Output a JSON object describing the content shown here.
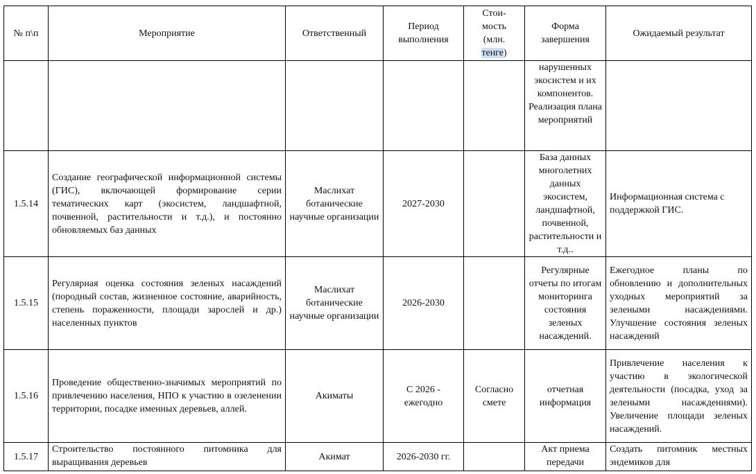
{
  "headers": {
    "num": "№ п\\п",
    "activity": "Мероприятие",
    "responsible": "Ответственный",
    "period": [
      "Период",
      "выполнения"
    ],
    "cost": [
      "Стои-",
      "мость",
      "(млн.",
      "тенге",
      ")"
    ],
    "form": [
      "Форма",
      "завершения"
    ],
    "result": "Ожидаемый результат"
  },
  "rows": [
    {
      "num": "",
      "activity": "",
      "responsible": "",
      "period": "",
      "cost": "",
      "form": "нарушенных экосистем и их компонентов. Реализация плана мероприятий",
      "result": ""
    },
    {
      "num": "1.5.14",
      "activity": "Создание географической информационной системы (ГИС), включающей формирование серии тематических карт (экосистем, ландшафтной, почвенной, растительности и т.д.), и постоянно обновляемых баз данных",
      "responsible": "Маслихат ботанические научные организации",
      "period": "2027-2030",
      "cost": "",
      "form": "База данных многолетних данных экосистем, ландшафтной, почвенной, растительности и т.д..",
      "result": "Информационная система с поддержкой ГИС."
    },
    {
      "num": "1.5.15",
      "activity": "Регулярная оценка состояния зеленых насаждений (породный состав, жизненное состояние, аварийность, степень пораженности, площади зарослей и др.) населенных пунктов",
      "responsible": "Маслихат ботанические научные организации",
      "period": "2026-2030",
      "cost": "",
      "form": "Регулярные отчеты по итогам мониторинга состояния зеленых насаждений.",
      "result": "Ежегодное планы по обновлению и дополнительных уходных мероприятий за зелеными насаждениями. Улучшение состояния зеленых насаждений"
    },
    {
      "num": "1.5.16",
      "activity": "Проведение общественно-значимых мероприятий по привлечению населения, НПО к участию в озеленении территории, посадке именных деревьев, аллей.",
      "responsible": "Акиматы",
      "period": "С 2026 - ежегодно",
      "cost": "Согласно смете",
      "form": "отчетная информация",
      "result": "Привлечение населения к участию в экологической деятельности (посадка, уход за зелеными насаждениями). Увеличение площади зеленых насаждений."
    },
    {
      "num": "1.5.17",
      "activity": "Строительство постоянного питомника для выращивания деревьев",
      "responsible": "Акимат",
      "period": "2026-2030 гг.",
      "cost": "",
      "form": "Акт приема передачи",
      "result": "Создать питомник местных эндемиков для"
    }
  ]
}
